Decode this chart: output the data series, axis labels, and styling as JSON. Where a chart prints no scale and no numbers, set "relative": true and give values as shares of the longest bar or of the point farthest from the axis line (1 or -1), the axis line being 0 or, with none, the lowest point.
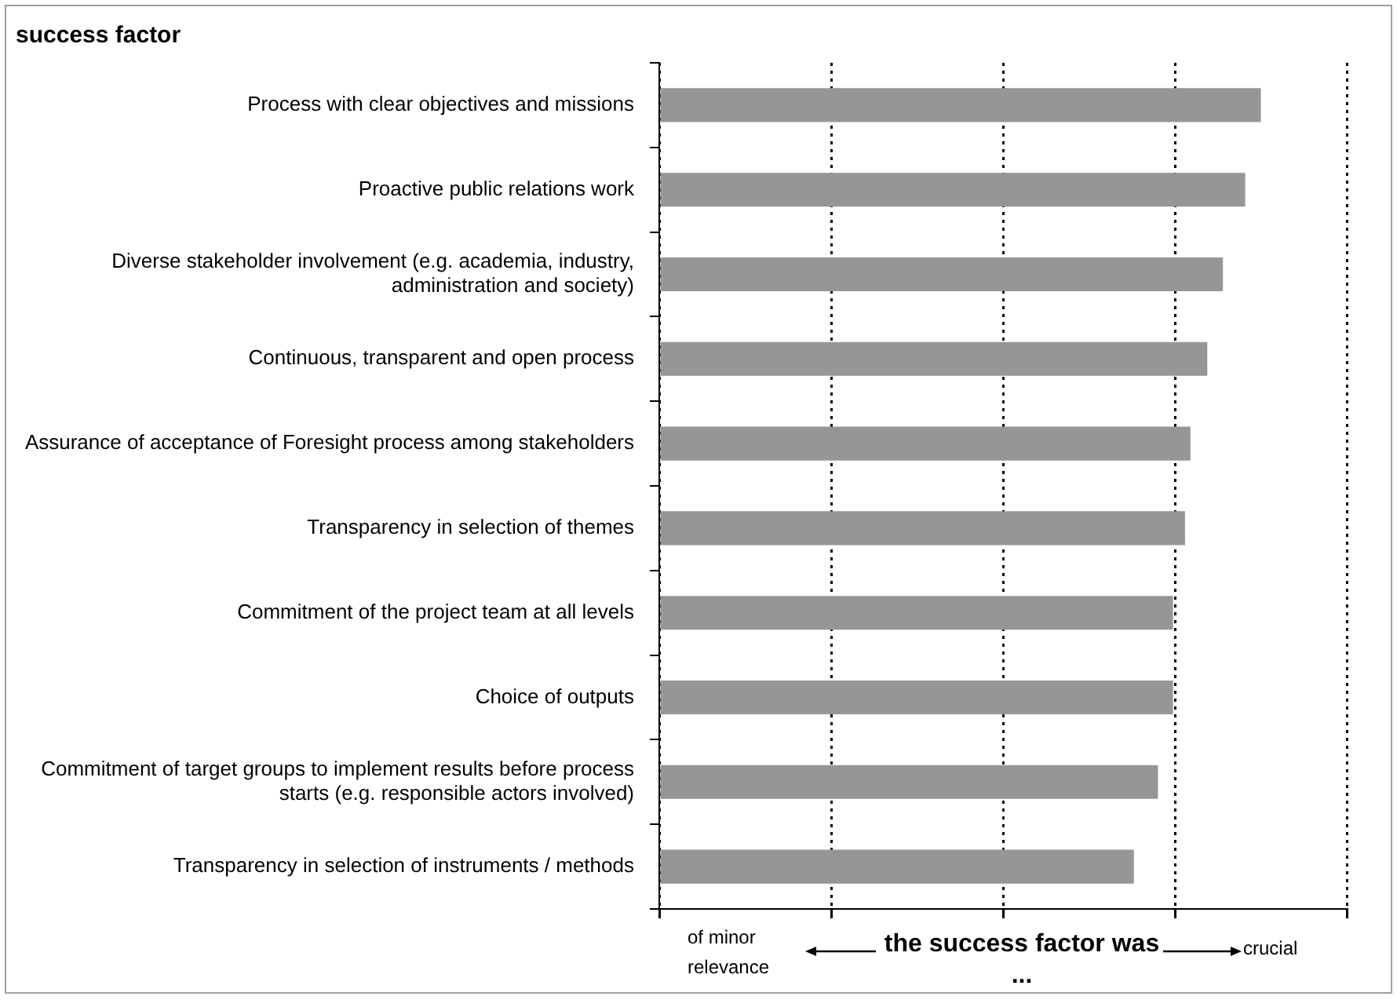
{
  "chart_data": {
    "type": "bar",
    "orientation": "horizontal",
    "title": "success factor",
    "xlabel": "the success factor was ...",
    "categories": [
      "Process with clear objectives and missions",
      "Proactive public relations work",
      "Diverse stakeholder involvement (e.g. academia, industry, administration and society)",
      "Continuous, transparent and open process",
      "Assurance of acceptance of Foresight process among stakeholders",
      "Transparency in selection of themes",
      "Commitment of the project team at all levels",
      "Choice of outputs",
      "Commitment of target groups to implement results before process starts (e.g. responsible actors involved)",
      "Transparency in selection of instruments / methods"
    ],
    "values": [
      1,
      0.974,
      0.937,
      0.911,
      0.883,
      0.874,
      0.854,
      0.854,
      0.829,
      0.789
    ],
    "color": "#969696",
    "relative": true,
    "grid": "x",
    "tick_labels": "y",
    "annotations": [
      "of minor relevance",
      "crucial"
    ]
  }
}
